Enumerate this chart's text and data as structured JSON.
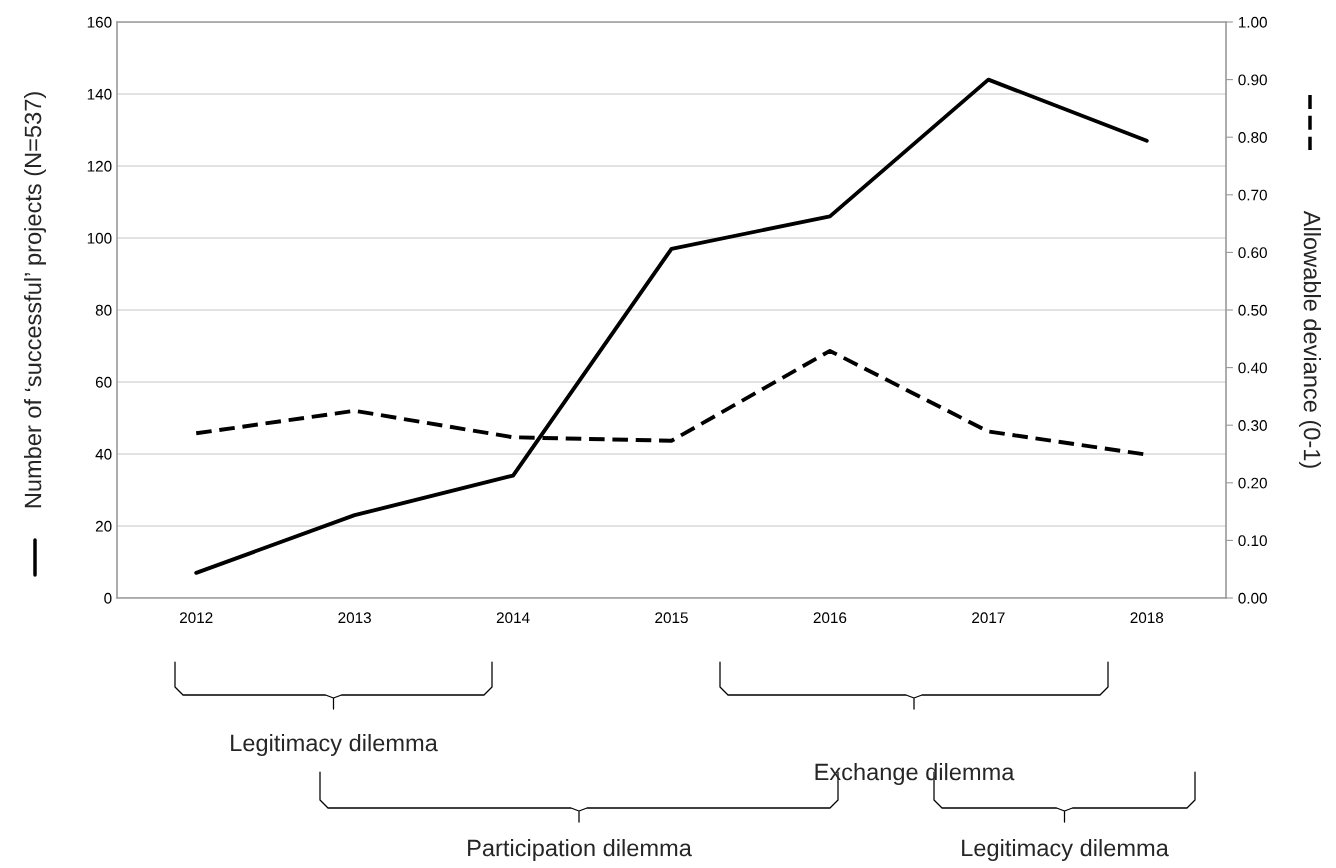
{
  "chart_data": {
    "type": "line",
    "categories": [
      "2012",
      "2013",
      "2014",
      "2015",
      "2016",
      "2017",
      "2018"
    ],
    "series": [
      {
        "color": "#000000",
        "line_style": "solid",
        "values": [
          7,
          23,
          34,
          97,
          106,
          144,
          127
        ]
      },
      {
        "color": "#000000",
        "line_style": "dashed",
        "axis": "y2",
        "values": [
          0.286,
          0.325,
          0.279,
          0.273,
          0.429,
          0.289,
          0.249
        ]
      }
    ],
    "ylabel": "Number of ‘successful’ projects (N=537)",
    "y2label": "Allowable deviance (0-1)",
    "ylim": [
      0,
      160
    ],
    "yticks": [
      0,
      20,
      40,
      60,
      80,
      100,
      120,
      140,
      160
    ],
    "y2lim": [
      0,
      1
    ],
    "y2ticks": [
      {
        "value": 0,
        "label": "0.00"
      },
      {
        "value": 0.1,
        "label": "0.10"
      },
      {
        "value": 0.2,
        "label": "0.20"
      },
      {
        "value": 0.3,
        "label": "0.30"
      },
      {
        "value": 0.4,
        "label": "0.40"
      },
      {
        "value": 0.5,
        "label": "0.50"
      },
      {
        "value": 0.6,
        "label": "0.60"
      },
      {
        "value": 0.7,
        "label": "0.70"
      },
      {
        "value": 0.8,
        "label": "0.80"
      },
      {
        "value": 0.9,
        "label": "0.90"
      },
      {
        "value": 1,
        "label": "1.00"
      }
    ],
    "grid": "y",
    "annotations": [
      "Legitimacy dilemma",
      "Exchange dilemma",
      "Participation dilemma",
      "Legitimacy dilemma"
    ]
  }
}
